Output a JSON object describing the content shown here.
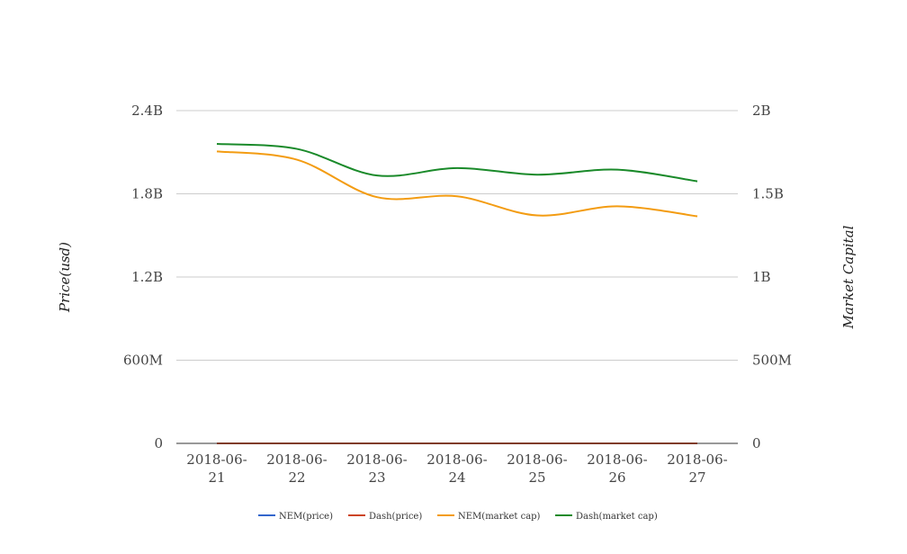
{
  "chart_data": {
    "type": "line",
    "categories": [
      "2018-06-21",
      "2018-06-22",
      "2018-06-23",
      "2018-06-24",
      "2018-06-25",
      "2018-06-26",
      "2018-06-27"
    ],
    "category_labels": [
      [
        "2018-06-",
        "21"
      ],
      [
        "2018-06-",
        "22"
      ],
      [
        "2018-06-",
        "23"
      ],
      [
        "2018-06-",
        "24"
      ],
      [
        "2018-06-",
        "25"
      ],
      [
        "2018-06-",
        "26"
      ],
      [
        "2018-06-",
        "27"
      ]
    ],
    "ylabel_left": "Price(usd)",
    "ylabel_right": "Market Capital",
    "ylim_left": [
      0,
      2400000000
    ],
    "ylim_right": [
      0,
      2000000000
    ],
    "yticks_left": [
      {
        "value": 0,
        "label": "0"
      },
      {
        "value": 600000000,
        "label": "600M"
      },
      {
        "value": 1200000000,
        "label": "1.2B"
      },
      {
        "value": 1800000000,
        "label": "1.8B"
      },
      {
        "value": 2400000000,
        "label": "2.4B"
      }
    ],
    "yticks_right": [
      {
        "value": 0,
        "label": "0"
      },
      {
        "value": 500000000,
        "label": "500M"
      },
      {
        "value": 1000000000,
        "label": "1B"
      },
      {
        "value": 1500000000,
        "label": "1.5B"
      },
      {
        "value": 2000000000,
        "label": "2B"
      }
    ],
    "grid": true,
    "legend_position": "bottom",
    "series": [
      {
        "name": "NEM(price)",
        "axis": "left",
        "color": "#3366cc",
        "values": [
          0.19,
          0.18,
          0.17,
          0.17,
          0.16,
          0.16,
          0.15
        ]
      },
      {
        "name": "Dash(price)",
        "axis": "left",
        "color": "#cc4422",
        "values": [
          240,
          237,
          224,
          225,
          220,
          222,
          215
        ]
      },
      {
        "name": "NEM(market cap)",
        "axis": "right",
        "color": "#f39c12",
        "values": [
          1755000000,
          1705000000,
          1480000000,
          1485000000,
          1370000000,
          1425000000,
          1365000000
        ]
      },
      {
        "name": "Dash(market cap)",
        "axis": "right",
        "color": "#1a8a2a",
        "values": [
          1800000000,
          1770000000,
          1610000000,
          1655000000,
          1615000000,
          1645000000,
          1575000000
        ]
      }
    ]
  }
}
